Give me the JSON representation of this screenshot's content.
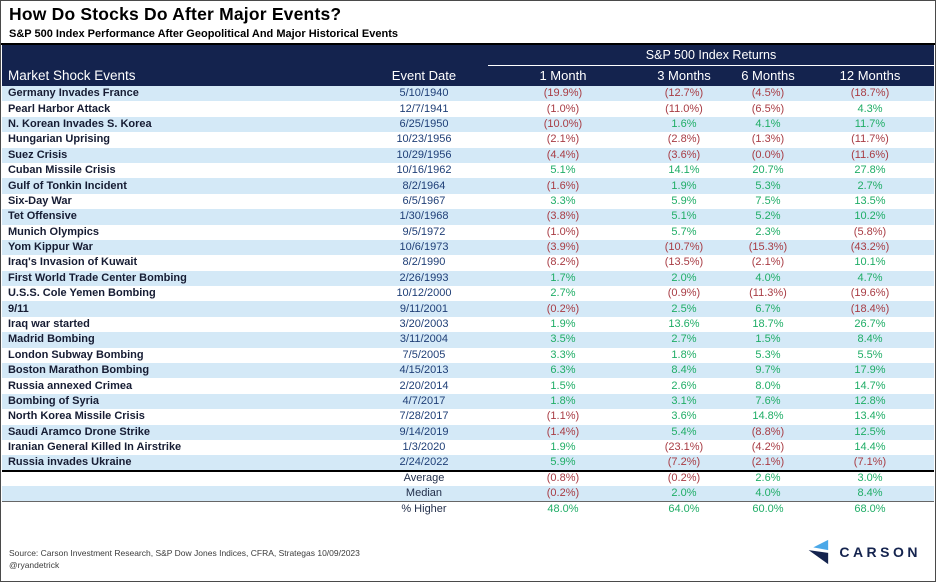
{
  "title": "How Do Stocks Do After Major Events?",
  "subtitle": "S&P 500 Index Performance After Geopolitical And Major Historical Events",
  "table": {
    "group_header": "S&P 500 Index Returns",
    "columns": [
      "Market Shock Events",
      "Event Date",
      "1 Month",
      "3 Months",
      "6 Months",
      "12 Months"
    ],
    "rows": [
      [
        "Germany Invades France",
        "5/10/1940",
        "(19.9%)",
        "(12.7%)",
        "(4.5%)",
        "(18.7%)"
      ],
      [
        "Pearl Harbor Attack",
        "12/7/1941",
        "(1.0%)",
        "(11.0%)",
        "(6.5%)",
        "4.3%"
      ],
      [
        "N. Korean Invades S. Korea",
        "6/25/1950",
        "(10.0%)",
        "1.6%",
        "4.1%",
        "11.7%"
      ],
      [
        "Hungarian Uprising",
        "10/23/1956",
        "(2.1%)",
        "(2.8%)",
        "(1.3%)",
        "(11.7%)"
      ],
      [
        "Suez Crisis",
        "10/29/1956",
        "(4.4%)",
        "(3.6%)",
        "(0.0%)",
        "(11.6%)"
      ],
      [
        "Cuban Missile Crisis",
        "10/16/1962",
        "5.1%",
        "14.1%",
        "20.7%",
        "27.8%"
      ],
      [
        "Gulf of Tonkin Incident",
        "8/2/1964",
        "(1.6%)",
        "1.9%",
        "5.3%",
        "2.7%"
      ],
      [
        "Six-Day War",
        "6/5/1967",
        "3.3%",
        "5.9%",
        "7.5%",
        "13.5%"
      ],
      [
        "Tet Offensive",
        "1/30/1968",
        "(3.8%)",
        "5.1%",
        "5.2%",
        "10.2%"
      ],
      [
        "Munich Olympics",
        "9/5/1972",
        "(1.0%)",
        "5.7%",
        "2.3%",
        "(5.8%)"
      ],
      [
        "Yom Kippur War",
        "10/6/1973",
        "(3.9%)",
        "(10.7%)",
        "(15.3%)",
        "(43.2%)"
      ],
      [
        "Iraq's Invasion of Kuwait",
        "8/2/1990",
        "(8.2%)",
        "(13.5%)",
        "(2.1%)",
        "10.1%"
      ],
      [
        "First World Trade Center Bombing",
        "2/26/1993",
        "1.7%",
        "2.0%",
        "4.0%",
        "4.7%"
      ],
      [
        "U.S.S. Cole Yemen Bombing",
        "10/12/2000",
        "2.7%",
        "(0.9%)",
        "(11.3%)",
        "(19.6%)"
      ],
      [
        "9/11",
        "9/11/2001",
        "(0.2%)",
        "2.5%",
        "6.7%",
        "(18.4%)"
      ],
      [
        "Iraq war started",
        "3/20/2003",
        "1.9%",
        "13.6%",
        "18.7%",
        "26.7%"
      ],
      [
        "Madrid Bombing",
        "3/11/2004",
        "3.5%",
        "2.7%",
        "1.5%",
        "8.4%"
      ],
      [
        "London Subway Bombing",
        "7/5/2005",
        "3.3%",
        "1.8%",
        "5.3%",
        "5.5%"
      ],
      [
        "Boston Marathon Bombing",
        "4/15/2013",
        "6.3%",
        "8.4%",
        "9.7%",
        "17.9%"
      ],
      [
        "Russia annexed Crimea",
        "2/20/2014",
        "1.5%",
        "2.6%",
        "8.0%",
        "14.7%"
      ],
      [
        "Bombing of Syria",
        "4/7/2017",
        "1.8%",
        "3.1%",
        "7.6%",
        "12.8%"
      ],
      [
        "North Korea Missile Crisis",
        "7/28/2017",
        "(1.1%)",
        "3.6%",
        "14.8%",
        "13.4%"
      ],
      [
        "Saudi Aramco Drone Strike",
        "9/14/2019",
        "(1.4%)",
        "5.4%",
        "(8.8%)",
        "12.5%"
      ],
      [
        "Iranian General Killed In Airstrike",
        "1/3/2020",
        "1.9%",
        "(23.1%)",
        "(4.2%)",
        "14.4%"
      ],
      [
        "Russia invades Ukraine",
        "2/24/2022",
        "5.9%",
        "(7.2%)",
        "(2.1%)",
        "(7.1%)"
      ]
    ],
    "summary": [
      {
        "label": "Average",
        "values": [
          "(0.8%)",
          "(0.2%)",
          "2.6%",
          "3.0%"
        ]
      },
      {
        "label": "Median",
        "values": [
          "(0.2%)",
          "2.0%",
          "4.0%",
          "8.4%"
        ]
      },
      {
        "label": "% Higher",
        "values": [
          "48.0%",
          "64.0%",
          "60.0%",
          "68.0%"
        ]
      }
    ]
  },
  "footer": {
    "source": "Source: Carson Investment Research, S&P Dow Jones Indices, CFRA, Strategas 10/09/2023",
    "handle": "@ryandetrick",
    "logo_text": "CARSON",
    "logo_icon": "carson-chevron-icon"
  },
  "colors": {
    "header_navy": "#14234e",
    "row_stripe_blue": "#d4e9f7",
    "positive_green": "#1fad66",
    "negative_red": "#a83c44",
    "logo_light_blue": "#4aa8e8"
  },
  "chart_data": {
    "type": "table",
    "title": "How Do Stocks Do After Major Events?",
    "subtitle": "S&P 500 Index Performance After Geopolitical And Major Historical Events",
    "group_header": "S&P 500 Index Returns",
    "columns": [
      "Market Shock Events",
      "Event Date",
      "1 Month",
      "3 Months",
      "6 Months",
      "12 Months"
    ],
    "units": "percent",
    "negative_style": "parentheses-red",
    "positive_style": "green",
    "rows": [
      {
        "event": "Germany Invades France",
        "date": "5/10/1940",
        "returns": [
          -19.9,
          -12.7,
          -4.5,
          -18.7
        ]
      },
      {
        "event": "Pearl Harbor Attack",
        "date": "12/7/1941",
        "returns": [
          -1.0,
          -11.0,
          -6.5,
          4.3
        ]
      },
      {
        "event": "N. Korean Invades S. Korea",
        "date": "6/25/1950",
        "returns": [
          -10.0,
          1.6,
          4.1,
          11.7
        ]
      },
      {
        "event": "Hungarian Uprising",
        "date": "10/23/1956",
        "returns": [
          -2.1,
          -2.8,
          -1.3,
          -11.7
        ]
      },
      {
        "event": "Suez Crisis",
        "date": "10/29/1956",
        "returns": [
          -4.4,
          -3.6,
          -0.0,
          -11.6
        ]
      },
      {
        "event": "Cuban Missile Crisis",
        "date": "10/16/1962",
        "returns": [
          5.1,
          14.1,
          20.7,
          27.8
        ]
      },
      {
        "event": "Gulf of Tonkin Incident",
        "date": "8/2/1964",
        "returns": [
          -1.6,
          1.9,
          5.3,
          2.7
        ]
      },
      {
        "event": "Six-Day War",
        "date": "6/5/1967",
        "returns": [
          3.3,
          5.9,
          7.5,
          13.5
        ]
      },
      {
        "event": "Tet Offensive",
        "date": "1/30/1968",
        "returns": [
          -3.8,
          5.1,
          5.2,
          10.2
        ]
      },
      {
        "event": "Munich Olympics",
        "date": "9/5/1972",
        "returns": [
          -1.0,
          5.7,
          2.3,
          -5.8
        ]
      },
      {
        "event": "Yom Kippur War",
        "date": "10/6/1973",
        "returns": [
          -3.9,
          -10.7,
          -15.3,
          -43.2
        ]
      },
      {
        "event": "Iraq's Invasion of Kuwait",
        "date": "8/2/1990",
        "returns": [
          -8.2,
          -13.5,
          -2.1,
          10.1
        ]
      },
      {
        "event": "First World Trade Center Bombing",
        "date": "2/26/1993",
        "returns": [
          1.7,
          2.0,
          4.0,
          4.7
        ]
      },
      {
        "event": "U.S.S. Cole Yemen Bombing",
        "date": "10/12/2000",
        "returns": [
          2.7,
          -0.9,
          -11.3,
          -19.6
        ]
      },
      {
        "event": "9/11",
        "date": "9/11/2001",
        "returns": [
          -0.2,
          2.5,
          6.7,
          -18.4
        ]
      },
      {
        "event": "Iraq war started",
        "date": "3/20/2003",
        "returns": [
          1.9,
          13.6,
          18.7,
          26.7
        ]
      },
      {
        "event": "Madrid Bombing",
        "date": "3/11/2004",
        "returns": [
          3.5,
          2.7,
          1.5,
          8.4
        ]
      },
      {
        "event": "London Subway Bombing",
        "date": "7/5/2005",
        "returns": [
          3.3,
          1.8,
          5.3,
          5.5
        ]
      },
      {
        "event": "Boston Marathon Bombing",
        "date": "4/15/2013",
        "returns": [
          6.3,
          8.4,
          9.7,
          17.9
        ]
      },
      {
        "event": "Russia annexed Crimea",
        "date": "2/20/2014",
        "returns": [
          1.5,
          2.6,
          8.0,
          14.7
        ]
      },
      {
        "event": "Bombing of Syria",
        "date": "4/7/2017",
        "returns": [
          1.8,
          3.1,
          7.6,
          12.8
        ]
      },
      {
        "event": "North Korea Missile Crisis",
        "date": "7/28/2017",
        "returns": [
          -1.1,
          3.6,
          14.8,
          13.4
        ]
      },
      {
        "event": "Saudi Aramco Drone Strike",
        "date": "9/14/2019",
        "returns": [
          -1.4,
          5.4,
          -8.8,
          12.5
        ]
      },
      {
        "event": "Iranian General Killed In Airstrike",
        "date": "1/3/2020",
        "returns": [
          1.9,
          -23.1,
          -4.2,
          14.4
        ]
      },
      {
        "event": "Russia invades Ukraine",
        "date": "2/24/2022",
        "returns": [
          5.9,
          -7.2,
          -2.1,
          -7.1
        ]
      }
    ],
    "summary": [
      {
        "label": "Average",
        "returns": [
          -0.8,
          -0.2,
          2.6,
          3.0
        ]
      },
      {
        "label": "Median",
        "returns": [
          -0.2,
          2.0,
          4.0,
          8.4
        ]
      },
      {
        "label": "% Higher",
        "returns": [
          48.0,
          64.0,
          60.0,
          68.0
        ]
      }
    ]
  }
}
